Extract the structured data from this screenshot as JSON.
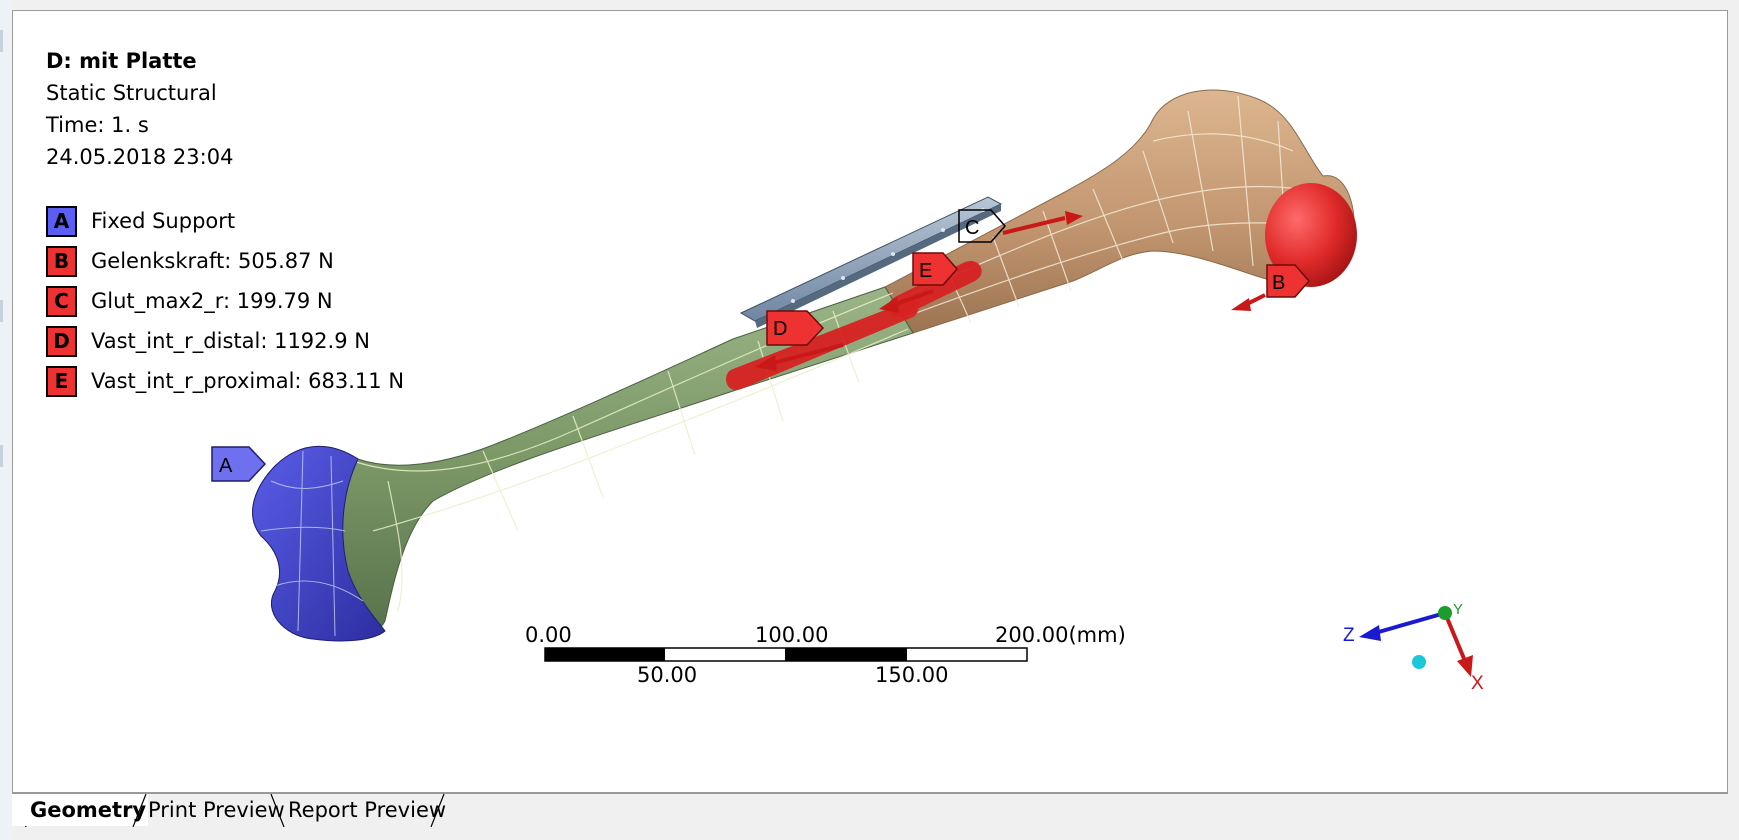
{
  "info": {
    "title": "D: mit Platte",
    "analysis_type": "Static Structural",
    "time": "Time: 1. s",
    "date": "24.05.2018 23:04"
  },
  "legend": [
    {
      "letter": "A",
      "label": "Fixed Support",
      "color": "#5a5ef2"
    },
    {
      "letter": "B",
      "label": "Gelenkskraft: 505.87 N",
      "color": "#ee3232"
    },
    {
      "letter": "C",
      "label": "Glut_max2_r: 199.79 N",
      "color": "#ee3232"
    },
    {
      "letter": "D",
      "label": "Vast_int_r_distal: 1192.9 N",
      "color": "#ee3232"
    },
    {
      "letter": "E",
      "label": "Vast_int_r_proximal: 683.11 N",
      "color": "#ee3232"
    }
  ],
  "markers": {
    "a": "A",
    "b": "B",
    "c": "C",
    "d": "D",
    "e": "E"
  },
  "scale_bar": {
    "top_labels": [
      "0.00",
      "100.00",
      "200.00(mm)"
    ],
    "bottom_labels": [
      "50.00",
      "150.00"
    ]
  },
  "triad": {
    "x": "X",
    "y": "Y",
    "z": "Z"
  },
  "tabs": [
    {
      "label": "Geometry",
      "active": true
    },
    {
      "label": "Print Preview",
      "active": false
    },
    {
      "label": "Report Preview",
      "active": false
    }
  ],
  "colors": {
    "fixed_support": "#5a5ef2",
    "force": "#ee3232",
    "bone_distal": "#7f9b6a",
    "bone_proximal": "#c49a74",
    "plate": "#8da3bc"
  }
}
